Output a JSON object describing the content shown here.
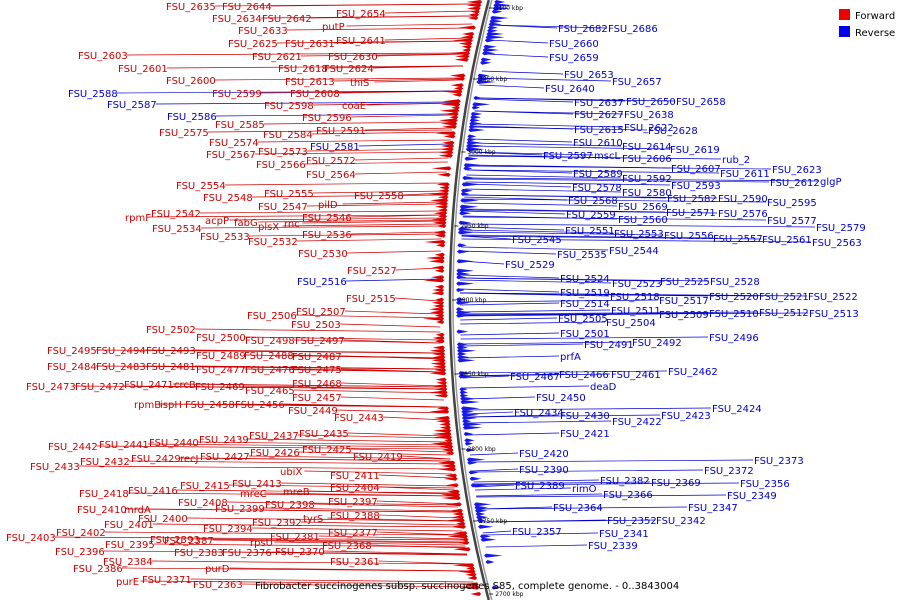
{
  "legend": {
    "forward": {
      "label": "Forward",
      "color": "#ee0000"
    },
    "reverse": {
      "label": "Reverse",
      "color": "#0000ee"
    }
  },
  "caption": "Fibrobacter succinogenes subsp. succinogenes S85, complete genome. - 0..3843004",
  "scale_ticks": [
    "3100 kbp",
    "3050 kbp",
    "3000 kbp",
    "2950 kbp",
    "2900 kbp",
    "2850 kbp",
    "2800 kbp",
    "2750 kbp",
    "2700 kbp"
  ],
  "forward_labels": [
    "FSU_2635",
    "FSU_2644",
    "FSU_2634",
    "FSU_2642",
    "FSU_2654",
    "putP",
    "FSU_2633",
    "FSU_2625",
    "FSU_2631",
    "FSU_2641",
    "FSU_2621",
    "FSU_2630",
    "FSU_2603",
    "FSU_2618",
    "FSU_2624",
    "FSU_2601",
    "FSU_2613",
    "thiS",
    "FSU_2600",
    "FSU_2599",
    "FSU_2608",
    "FSU_2598",
    "coaE",
    "FSU_2596",
    "FSU_2585",
    "FSU_2591",
    "FSU_2575",
    "FSU_2584",
    "FSU_2574",
    "FSU_2573",
    "FSU_2567",
    "FSU_2566",
    "FSU_2572",
    "FSU_2564",
    "FSU_2554",
    "FSU_2548",
    "FSU_2555",
    "FSU_2558",
    "FSU_2547",
    "pilD",
    "rpmF",
    "FSU_2542",
    "acpP",
    "fabG",
    "plsX",
    "rnc",
    "FSU_2546",
    "FSU_2534",
    "FSU_2533",
    "FSU_2532",
    "FSU_2536",
    "FSU_2530",
    "FSU_2527",
    "FSU_2515",
    "FSU_2507",
    "FSU_2506",
    "FSU_2503",
    "FSU_2502",
    "FSU_2500",
    "FSU_2498",
    "FSU_2497",
    "FSU_2495",
    "FSU_2494",
    "FSU_2493",
    "FSU_2489",
    "FSU_2488",
    "FSU_2487",
    "FSU_2484",
    "FSU_2483",
    "FSU_2481",
    "FSU_2477",
    "FSU_2476",
    "FSU_2475",
    "FSU_2473",
    "FSU_2472",
    "FSU_2471",
    "crcB",
    "FSU_2469",
    "FSU_2468",
    "FSU_2465",
    "rpmB",
    "ispH",
    "FSU_2458",
    "FSU_2456",
    "FSU_2457",
    "FSU_2449",
    "FSU_2443",
    "FSU_2442",
    "FSU_2441",
    "FSU_2440",
    "FSU_2439",
    "FSU_2437",
    "FSU_2435",
    "FSU_2432",
    "FSU_2429",
    "recJ",
    "FSU_2427",
    "FSU_2426",
    "FSU_2425",
    "FSU_2419",
    "FSU_2433",
    "ubiX",
    "FSU_2411",
    "FSU_2415",
    "FSU_2413",
    "FSU_2404",
    "FSU_2418",
    "FSU_2416",
    "mreC",
    "mreB",
    "FSU_2408",
    "FSU_2398",
    "FSU_2397",
    "FSU_2410",
    "mrdA",
    "FSU_2399",
    "FSU_2400",
    "FSU_2388",
    "FSU_2401",
    "FSU_2394",
    "FSU_2392",
    "tyrS",
    "FSU_2403",
    "FSU_2402",
    "FSU_2393",
    "FSU_2381",
    "rpsU",
    "FSU_2377",
    "FSU_2395",
    "FSU_2387",
    "FSU_2368",
    "FSU_2396",
    "FSU_2383",
    "FSU_2376",
    "FSU_2370",
    "FSU_2384",
    "FSU_2386",
    "purD",
    "FSU_2361",
    "purE",
    "FSU_2371",
    "FSU_2363"
  ],
  "reverse_labels": [
    "FSU_2682",
    "FSU_2686",
    "FSU_2660",
    "FSU_2659",
    "FSU_2653",
    "FSU_2657",
    "FSU_2640",
    "FSU_2637",
    "FSU_2650",
    "FSU_2658",
    "FSU_2627",
    "FSU_2638",
    "FSU_2615",
    "FSU_2622",
    "FSU_2628",
    "FSU_2610",
    "FSU_2614",
    "FSU_2619",
    "FSU_2597",
    "mscL",
    "FSU_2606",
    "rub_2",
    "FSU_2607",
    "FSU_2611",
    "FSU_2623",
    "FSU_2612",
    "glgP",
    "FSU_2589",
    "FSU_2592",
    "FSU_2578",
    "FSU_2580",
    "FSU_2593",
    "FSU_2568",
    "FSU_2582",
    "FSU_2590",
    "FSU_2569",
    "FSU_2595",
    "FSU_2559",
    "FSU_2571",
    "FSU_2576",
    "FSU_2560",
    "FSU_2577",
    "FSU_2551",
    "FSU_2553",
    "FSU_2556",
    "FSU_2557",
    "FSU_2561",
    "FSU_2579",
    "FSU_2545",
    "FSU_2544",
    "FSU_2563",
    "FSU_2535",
    "FSU_2529",
    "FSU_2524",
    "FSU_2523",
    "FSU_2525",
    "FSU_2528",
    "FSU_2519",
    "FSU_2518",
    "FSU_2517",
    "FSU_2520",
    "FSU_2521",
    "FSU_2522",
    "FSU_2514",
    "FSU_2511",
    "FSU_2509",
    "FSU_2510",
    "FSU_2512",
    "FSU_2513",
    "FSU_2505",
    "FSU_2504",
    "FSU_2501",
    "FSU_2496",
    "FSU_2491",
    "FSU_2492",
    "prfA",
    "FSU_2467",
    "FSU_2466",
    "FSU_2461",
    "FSU_2462",
    "deaD",
    "FSU_2450",
    "FSU_2424",
    "FSU_2434",
    "FSU_2430",
    "FSU_2423",
    "FSU_2422",
    "FSU_2421",
    "FSU_2420",
    "FSU_2373",
    "FSU_2390",
    "FSU_2372",
    "FSU_2389",
    "rimO",
    "FSU_2382",
    "FSU_2369",
    "FSU_2356",
    "FSU_2366",
    "FSU_2349",
    "FSU_2364",
    "FSU_2347",
    "FSU_2352",
    "FSU_2342",
    "FSU_2357",
    "FSU_2341",
    "FSU_2339",
    "FSU_2587",
    "FSU_2588",
    "FSU_2586",
    "FSU_2581",
    "FSU_2516"
  ]
}
